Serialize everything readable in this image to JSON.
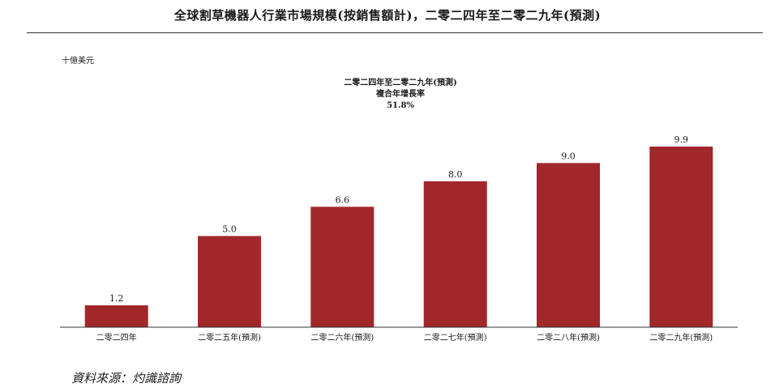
{
  "title": "全球割草機器人行業市場規模(按銷售額計)，二零二四年至二零二九年(預測)",
  "unit_label": "十億美元",
  "cagr": {
    "period": "二零二四年至二零二九年(預測)",
    "label": "複合年增長率",
    "value": "51.8%"
  },
  "source": "資料來源：灼識諮詢",
  "colors": {
    "bar": "#a1272b",
    "axis": "#333333"
  },
  "chart_data": {
    "type": "bar",
    "categories": [
      "二零二四年",
      "二零二五年(預測)",
      "二零二六年(預測)",
      "二零二七年(預測)",
      "二零二八年(預測)",
      "二零二九年(預測)"
    ],
    "values": [
      1.2,
      5.0,
      6.6,
      8.0,
      9.0,
      9.9
    ],
    "value_labels": [
      "1.2",
      "5.0",
      "6.6",
      "8.0",
      "9.0",
      "9.9"
    ],
    "ylabel": "十億美元",
    "ylim": [
      0,
      9.9
    ],
    "grid": false
  }
}
